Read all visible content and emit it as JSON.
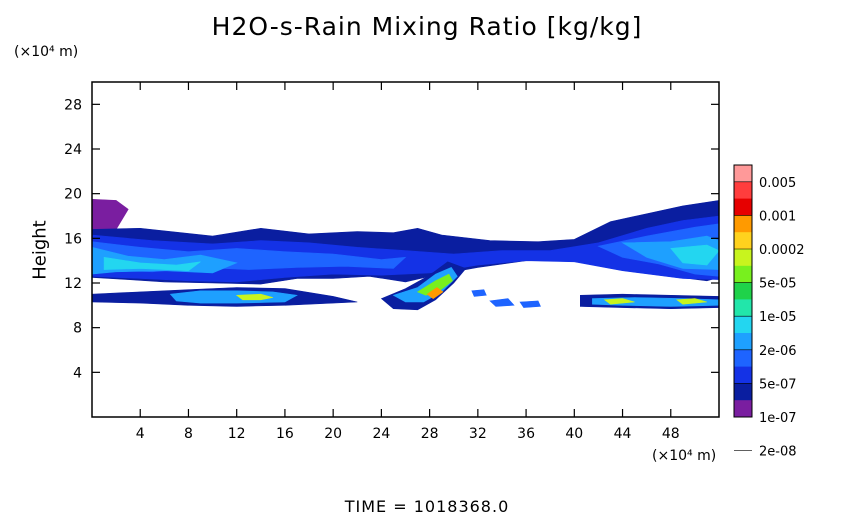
{
  "chart_data": {
    "type": "heatmap",
    "title": "H2O-s-Rain Mixing Ratio [kg/kg]",
    "ylabel": "Height",
    "y_unit_label": "(×10⁴ m)",
    "x_unit_label": "(×10⁴ m)",
    "footer": "TIME = 1018368.0",
    "xlim": [
      0,
      52
    ],
    "ylim": [
      0,
      30
    ],
    "x_ticks": [
      "4",
      "8",
      "12",
      "16",
      "20",
      "24",
      "28",
      "32",
      "36",
      "40",
      "44",
      "48"
    ],
    "y_ticks": [
      "4",
      "8",
      "12",
      "16",
      "20",
      "24",
      "28"
    ],
    "x_tick_values": [
      4,
      8,
      12,
      16,
      20,
      24,
      28,
      32,
      36,
      40,
      44,
      48
    ],
    "y_tick_values": [
      4,
      8,
      12,
      16,
      20,
      24,
      28
    ],
    "colorbar": {
      "labels": [
        "0.005",
        "0.001",
        "0.0002",
        "5e-05",
        "1e-05",
        "2e-06",
        "5e-07",
        "1e-07",
        "2e-08"
      ],
      "colors": [
        "#ff9999",
        "#ff3d3d",
        "#e60000",
        "#ff9a00",
        "#ffd21e",
        "#c8f41e",
        "#78f01e",
        "#1fd24a",
        "#22e6aa",
        "#23d6f0",
        "#1ea0ff",
        "#1e64ff",
        "#1432e6",
        "#0a1ea0",
        "#7a1ea0"
      ]
    },
    "regions": [
      {
        "level": 14,
        "points": [
          [
            0,
            19.5
          ],
          [
            2,
            19.4
          ],
          [
            3,
            18.6
          ],
          [
            2,
            16.8
          ],
          [
            0,
            16.8
          ]
        ]
      },
      {
        "level": 13,
        "points": [
          [
            0,
            16.8
          ],
          [
            4,
            16.9
          ],
          [
            10,
            16.2
          ],
          [
            14,
            16.9
          ],
          [
            18,
            16.4
          ],
          [
            22,
            16.6
          ],
          [
            25,
            16.5
          ],
          [
            27,
            16.9
          ],
          [
            29,
            16.3
          ],
          [
            33,
            15.8
          ],
          [
            37,
            15.7
          ],
          [
            40,
            15.9
          ],
          [
            43,
            17.5
          ],
          [
            46,
            18.2
          ],
          [
            49,
            18.9
          ],
          [
            52,
            19.4
          ],
          [
            52,
            12.5
          ],
          [
            51,
            12.2
          ],
          [
            48,
            12.6
          ],
          [
            44,
            13.2
          ],
          [
            40,
            14.0
          ],
          [
            36,
            14.0
          ],
          [
            32,
            13.4
          ],
          [
            30,
            13.0
          ],
          [
            28,
            12.6
          ],
          [
            26,
            12.1
          ],
          [
            23,
            12.6
          ],
          [
            20,
            12.4
          ],
          [
            17,
            12.4
          ],
          [
            14,
            11.9
          ],
          [
            10,
            12.0
          ],
          [
            6,
            12.1
          ],
          [
            3,
            12.3
          ],
          [
            0,
            12.5
          ]
        ]
      },
      {
        "level": 12,
        "points": [
          [
            0,
            16.3
          ],
          [
            5,
            15.8
          ],
          [
            10,
            15.5
          ],
          [
            14,
            15.8
          ],
          [
            18,
            15.6
          ],
          [
            22,
            15.2
          ],
          [
            26,
            14.9
          ],
          [
            30,
            14.6
          ],
          [
            34,
            14.9
          ],
          [
            38,
            14.9
          ],
          [
            42,
            15.6
          ],
          [
            46,
            16.9
          ],
          [
            49,
            17.6
          ],
          [
            52,
            18.0
          ],
          [
            52,
            12.3
          ],
          [
            49,
            12.4
          ],
          [
            44,
            13.1
          ],
          [
            40,
            13.9
          ],
          [
            36,
            14.0
          ],
          [
            32,
            13.6
          ],
          [
            28,
            12.9
          ],
          [
            24,
            12.7
          ],
          [
            20,
            12.8
          ],
          [
            16,
            12.5
          ],
          [
            12,
            12.1
          ],
          [
            8,
            12.2
          ],
          [
            4,
            12.4
          ],
          [
            0,
            12.6
          ]
        ]
      },
      {
        "level": 11,
        "points": [
          [
            0,
            15.7
          ],
          [
            4,
            15.2
          ],
          [
            8,
            14.8
          ],
          [
            12,
            15.1
          ],
          [
            16,
            14.8
          ],
          [
            20,
            14.6
          ],
          [
            24,
            14.1
          ],
          [
            26,
            14.3
          ],
          [
            25,
            13.3
          ],
          [
            21,
            13.5
          ],
          [
            17,
            13.4
          ],
          [
            13,
            13.2
          ],
          [
            9,
            13.4
          ],
          [
            5,
            13.0
          ],
          [
            1,
            13.2
          ],
          [
            0,
            13.0
          ]
        ]
      },
      {
        "level": 11,
        "points": [
          [
            42,
            15.3
          ],
          [
            46,
            16.2
          ],
          [
            50,
            17.0
          ],
          [
            52,
            17.3
          ],
          [
            52,
            12.6
          ],
          [
            50,
            12.8
          ],
          [
            47,
            13.7
          ],
          [
            44,
            14.3
          ]
        ]
      },
      {
        "level": 10,
        "points": [
          [
            0,
            15.2
          ],
          [
            3,
            14.4
          ],
          [
            6,
            14.1
          ],
          [
            9,
            14.5
          ],
          [
            12,
            13.8
          ],
          [
            10,
            12.9
          ],
          [
            6,
            13.1
          ],
          [
            2,
            13.0
          ],
          [
            0,
            12.8
          ]
        ]
      },
      {
        "level": 10,
        "points": [
          [
            44,
            15.6
          ],
          [
            48,
            15.7
          ],
          [
            51,
            16.2
          ],
          [
            52,
            15.8
          ],
          [
            52,
            13.2
          ],
          [
            49,
            13.3
          ],
          [
            46,
            14.3
          ]
        ]
      },
      {
        "level": 9,
        "points": [
          [
            1,
            14.3
          ],
          [
            4,
            13.8
          ],
          [
            7,
            13.6
          ],
          [
            9,
            13.9
          ],
          [
            8,
            13.1
          ],
          [
            4,
            13.3
          ],
          [
            1,
            13.2
          ]
        ]
      },
      {
        "level": 9,
        "points": [
          [
            48,
            15.1
          ],
          [
            51,
            15.4
          ],
          [
            52,
            14.9
          ],
          [
            51,
            13.6
          ],
          [
            49,
            13.8
          ]
        ]
      },
      {
        "level": 13,
        "points": [
          [
            0,
            11.0
          ],
          [
            4,
            11.2
          ],
          [
            8,
            11.4
          ],
          [
            12,
            11.6
          ],
          [
            16,
            11.5
          ],
          [
            20,
            10.8
          ],
          [
            22,
            10.3
          ],
          [
            16,
            10.0
          ],
          [
            12,
            9.9
          ],
          [
            8,
            10.0
          ],
          [
            4,
            10.2
          ],
          [
            0,
            10.3
          ]
        ]
      },
      {
        "level": 10,
        "points": [
          [
            6.5,
            11.0
          ],
          [
            9,
            11.3
          ],
          [
            12,
            11.3
          ],
          [
            15,
            11.2
          ],
          [
            17,
            10.9
          ],
          [
            16,
            10.3
          ],
          [
            12,
            10.2
          ],
          [
            9,
            10.2
          ],
          [
            7,
            10.4
          ]
        ]
      },
      {
        "level": 5,
        "points": [
          [
            12,
            10.9
          ],
          [
            14,
            11.0
          ],
          [
            15,
            10.7
          ],
          [
            14,
            10.5
          ],
          [
            12.5,
            10.5
          ]
        ]
      },
      {
        "level": 13,
        "points": [
          [
            24,
            10.6
          ],
          [
            26,
            11.5
          ],
          [
            28,
            12.7
          ],
          [
            29.5,
            13.9
          ],
          [
            31,
            13.3
          ],
          [
            30,
            12.0
          ],
          [
            28.5,
            10.5
          ],
          [
            27,
            9.6
          ],
          [
            25,
            9.7
          ]
        ]
      },
      {
        "level": 10,
        "points": [
          [
            25,
            10.9
          ],
          [
            27,
            11.6
          ],
          [
            28.5,
            12.8
          ],
          [
            29.8,
            13.4
          ],
          [
            30.3,
            12.6
          ],
          [
            29,
            11.2
          ],
          [
            27.5,
            10.3
          ],
          [
            26,
            10.3
          ]
        ]
      },
      {
        "level": 6,
        "points": [
          [
            27,
            11.2
          ],
          [
            28.5,
            12.2
          ],
          [
            29.6,
            12.8
          ],
          [
            29.9,
            12.2
          ],
          [
            28.8,
            11.3
          ],
          [
            27.7,
            10.9
          ]
        ]
      },
      {
        "level": 3,
        "points": [
          [
            27.8,
            11.0
          ],
          [
            28.6,
            11.6
          ],
          [
            29.1,
            11.2
          ],
          [
            28.3,
            10.6
          ]
        ]
      },
      {
        "level": 13,
        "points": [
          [
            40.5,
            10.9
          ],
          [
            44,
            11.0
          ],
          [
            48,
            10.9
          ],
          [
            52,
            10.8
          ],
          [
            52,
            9.8
          ],
          [
            48,
            9.7
          ],
          [
            44,
            9.8
          ],
          [
            40.5,
            9.9
          ]
        ]
      },
      {
        "level": 10,
        "points": [
          [
            41.5,
            10.6
          ],
          [
            45,
            10.7
          ],
          [
            49,
            10.6
          ],
          [
            52,
            10.5
          ],
          [
            52,
            10.0
          ],
          [
            48,
            9.9
          ],
          [
            44,
            10.0
          ],
          [
            41.5,
            10.1
          ]
        ]
      },
      {
        "level": 5,
        "points": [
          [
            42.5,
            10.5
          ],
          [
            44,
            10.6
          ],
          [
            45,
            10.3
          ],
          [
            43,
            10.1
          ]
        ]
      },
      {
        "level": 5,
        "points": [
          [
            48.5,
            10.5
          ],
          [
            50,
            10.6
          ],
          [
            51,
            10.3
          ],
          [
            49,
            10.1
          ]
        ]
      },
      {
        "level": 11,
        "points": [
          [
            33,
            10.4
          ],
          [
            34.5,
            10.6
          ],
          [
            35,
            10.0
          ],
          [
            33.5,
            9.9
          ]
        ]
      },
      {
        "level": 11,
        "points": [
          [
            35.5,
            10.3
          ],
          [
            37,
            10.4
          ],
          [
            37.2,
            9.9
          ],
          [
            35.8,
            9.8
          ]
        ]
      },
      {
        "level": 11,
        "points": [
          [
            31.5,
            11.3
          ],
          [
            32.5,
            11.4
          ],
          [
            32.7,
            10.9
          ],
          [
            31.7,
            10.8
          ]
        ]
      }
    ]
  }
}
